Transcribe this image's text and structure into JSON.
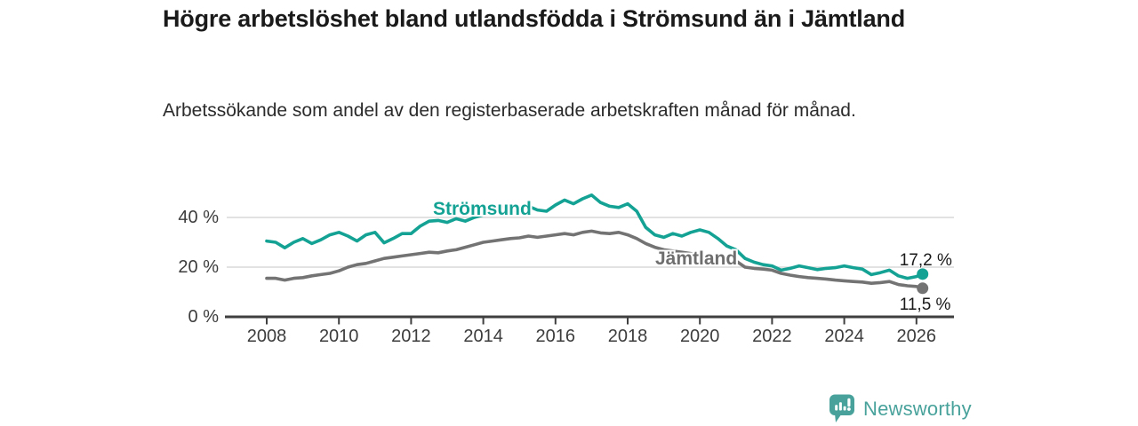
{
  "header": {
    "title": "Högre arbetslöshet bland utlandsfödda i Strömsund än i Jämtland",
    "subtitle": "Arbetssökande som andel av den registerbaserade arbetskraften månad för månad."
  },
  "footer": {
    "brand": "Newsworthy"
  },
  "colors": {
    "accent_teal": "#13a294",
    "series_gray": "#737373",
    "label_gray": "#6e6e6e",
    "grid": "#d9d9d9",
    "axis": "#3f3f3f",
    "text": "#1a1a1a",
    "logo_teal": "#48a29b"
  },
  "chart_data": {
    "type": "line",
    "title": "Högre arbetslöshet bland utlandsfödda i Strömsund än i Jämtland",
    "subtitle": "Arbetssökande som andel av den registerbaserade arbetskraften månad för månad.",
    "xlabel": "",
    "ylabel": "",
    "grid": "horizontal",
    "legend_position": "inline-labels",
    "x_range": [
      2007.9,
      2027.0
    ],
    "ylim": [
      0,
      52
    ],
    "x_axis": {
      "tick_years": [
        2008,
        2010,
        2012,
        2014,
        2016,
        2018,
        2020,
        2022,
        2024,
        2026
      ]
    },
    "y_axis": {
      "ticks": [
        {
          "value": 0,
          "label": "0 %"
        },
        {
          "value": 20,
          "label": "20 %"
        },
        {
          "value": 40,
          "label": "40 %"
        }
      ]
    },
    "x": [
      2008.0,
      2008.25,
      2008.5,
      2008.75,
      2009.0,
      2009.25,
      2009.5,
      2009.75,
      2010.0,
      2010.25,
      2010.5,
      2010.75,
      2011.0,
      2011.25,
      2011.5,
      2011.75,
      2012.0,
      2012.25,
      2012.5,
      2012.75,
      2013.0,
      2013.25,
      2013.5,
      2013.75,
      2014.0,
      2014.25,
      2014.5,
      2014.75,
      2015.0,
      2015.25,
      2015.5,
      2015.75,
      2016.0,
      2016.25,
      2016.5,
      2016.75,
      2017.0,
      2017.25,
      2017.5,
      2017.75,
      2018.0,
      2018.25,
      2018.5,
      2018.75,
      2019.0,
      2019.25,
      2019.5,
      2019.75,
      2020.0,
      2020.25,
      2020.5,
      2020.75,
      2021.0,
      2021.25,
      2021.5,
      2021.75,
      2022.0,
      2022.25,
      2022.5,
      2022.75,
      2023.0,
      2023.25,
      2023.5,
      2023.75,
      2024.0,
      2024.25,
      2024.5,
      2024.75,
      2025.0,
      2025.25,
      2025.5,
      2025.75,
      2026.0,
      2026.17
    ],
    "series": [
      {
        "name": "Strömsund",
        "color": "#13a294",
        "end_label": "17,2 %",
        "end_value": 17.2,
        "values": [
          30.5,
          30,
          27.8,
          30,
          31.5,
          29.5,
          31,
          33,
          34,
          32.5,
          30.5,
          33,
          34,
          29.8,
          31.5,
          33.5,
          33.5,
          36.5,
          38.5,
          38.8,
          38,
          39.5,
          38.5,
          40,
          41,
          43,
          44.5,
          42,
          43.5,
          44.5,
          43,
          42.5,
          45,
          47,
          45.5,
          47.5,
          49,
          46,
          44.5,
          44,
          45.5,
          42.5,
          36,
          33,
          32,
          33.5,
          32.5,
          34,
          35,
          34,
          31.5,
          28.5,
          27,
          23.5,
          22,
          21,
          20.5,
          18.8,
          19.5,
          20.5,
          19.8,
          19,
          19.5,
          19.8,
          20.5,
          19.8,
          19.2,
          17,
          17.8,
          18.8,
          16.5,
          15.5,
          16.2,
          17.2
        ]
      },
      {
        "name": "Jämtland",
        "color": "#737373",
        "end_label": "11,5 %",
        "end_value": 11.5,
        "values": [
          15.5,
          15.5,
          14.8,
          15.5,
          15.8,
          16.5,
          17,
          17.5,
          18.5,
          20,
          21,
          21.5,
          22.5,
          23.5,
          24,
          24.5,
          25,
          25.5,
          26,
          25.8,
          26.5,
          27,
          28,
          29,
          30,
          30.5,
          31,
          31.5,
          31.8,
          32.5,
          32,
          32.5,
          33,
          33.5,
          33,
          34,
          34.5,
          33.8,
          33.5,
          34,
          33,
          31.5,
          29.5,
          28,
          27,
          26.5,
          26,
          25.5,
          25,
          24.5,
          24,
          23,
          22.5,
          20,
          19.5,
          19.2,
          18.8,
          17.5,
          16.8,
          16.2,
          15.8,
          15.5,
          15.2,
          14.8,
          14.5,
          14.2,
          14,
          13.5,
          13.8,
          14.2,
          13,
          12.5,
          12.2,
          11.5
        ]
      }
    ]
  }
}
